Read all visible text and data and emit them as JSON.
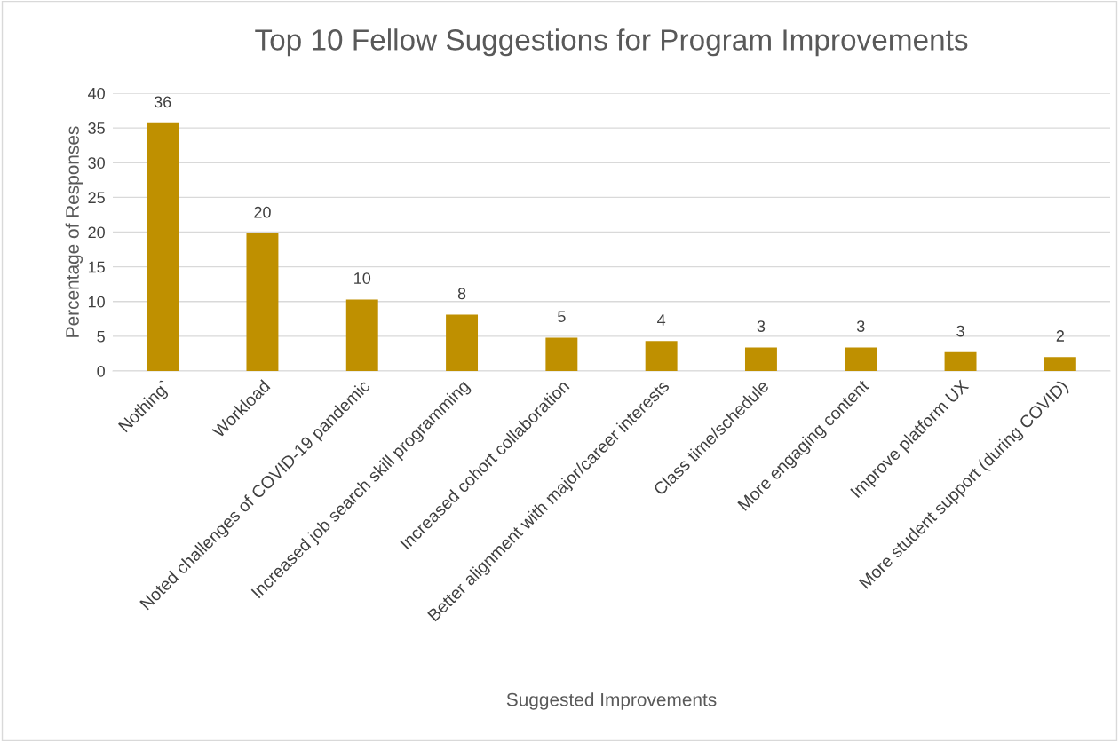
{
  "chart_data": {
    "type": "bar",
    "title": "Top 10 Fellow Suggestions for Program Improvements",
    "xlabel": "Suggested Improvements",
    "ylabel": "Percentage of Responses",
    "categories": [
      "Nothing`",
      "Workload",
      "Noted challenges of COVID-19 pandemic",
      "Increased job search skill programming",
      "Increased cohort collaboration",
      "Better alignment with major/career interests",
      "Class time/schedule",
      "More engaging content",
      "Improve platform UX",
      "More student support (during COVID)"
    ],
    "values": [
      35.7,
      19.8,
      10.3,
      8.1,
      4.8,
      4.3,
      3.4,
      3.4,
      2.7,
      2.0
    ],
    "value_labels": [
      "36",
      "20",
      "10",
      "8",
      "5",
      "4",
      "3",
      "3",
      "3",
      "2"
    ],
    "color": "#bf9000",
    "ylim": [
      0,
      40
    ],
    "yticks": [
      0,
      5,
      10,
      15,
      20,
      25,
      30,
      35,
      40
    ],
    "grid": "y"
  }
}
